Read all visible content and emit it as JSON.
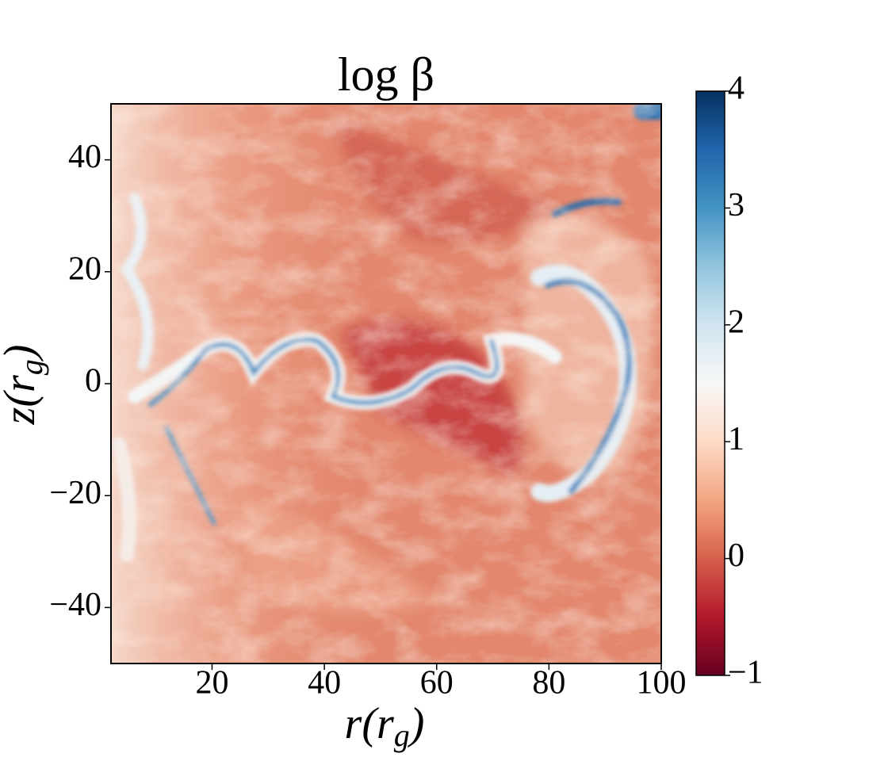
{
  "chart_data": {
    "type": "heatmap",
    "title": "log β",
    "xlabel_parts": [
      "r(r",
      "g",
      ")"
    ],
    "ylabel_parts": [
      "z(r",
      "g",
      ")"
    ],
    "xlim": [
      2,
      100
    ],
    "xticks": [
      20,
      40,
      60,
      80,
      100
    ],
    "ylim": [
      -50,
      50
    ],
    "yticks": [
      {
        "value": -40,
        "label": "−40"
      },
      {
        "value": -20,
        "label": "−20"
      },
      0,
      20,
      40
    ],
    "colormap": [
      "#67001f",
      "#b2182b",
      "#d6604d",
      "#f4a582",
      "#fddbc7",
      "#f7f7f7",
      "#d1e5f0",
      "#92c5de",
      "#4393c3",
      "#2166ac",
      "#053061"
    ],
    "clim": [
      -1,
      4
    ],
    "cticks": [
      {
        "value": -1,
        "label": "−1"
      },
      0,
      1,
      2,
      3,
      4
    ]
  }
}
